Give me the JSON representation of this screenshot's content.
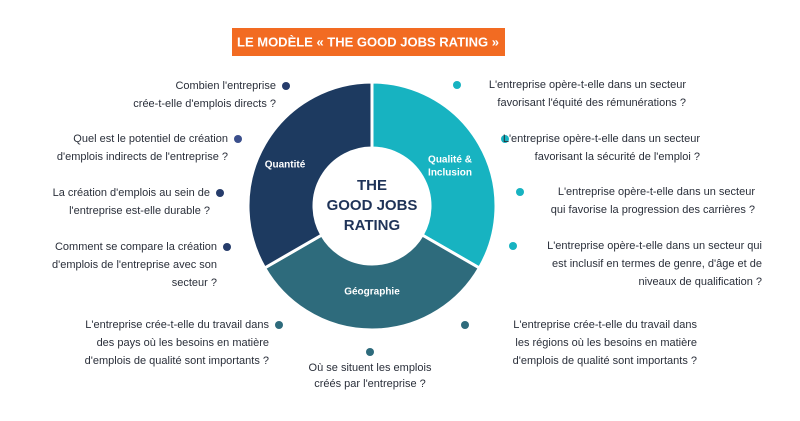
{
  "banner": "LE MODÈLE « THE GOOD JOBS RATING »",
  "center": [
    "THE",
    "GOOD JOBS",
    "RATING"
  ],
  "segments": {
    "quantite": [
      "Quantité"
    ],
    "qualite": [
      "Qualité &",
      "Inclusion"
    ],
    "geographie": [
      "Géographie"
    ]
  },
  "left_questions": [
    [
      "Combien l'entreprise",
      "crée-t-elle d'emplois directs ?"
    ],
    [
      "Quel est le potentiel de création",
      "d'emplois indirects de l'entreprise ?"
    ],
    [
      "La création d'emplois au sein de",
      "l'entreprise est-elle durable ?"
    ],
    [
      "Comment se compare la création",
      "d'emplois de l'entreprise avec son",
      "secteur ?"
    ],
    [
      "L'entreprise crée-t-elle du travail dans",
      "des pays où les besoins en matière",
      "d'emplois de qualité sont importants ?"
    ]
  ],
  "bottom_question": [
    "Où se situent les emplois",
    "créés par l'entreprise ?"
  ],
  "right_questions": [
    [
      "L'entreprise opère-t-elle dans un secteur",
      "favorisant l'équité des rémunérations ?"
    ],
    [
      "L'entreprise opère-t-elle dans un secteur",
      "favorisant la sécurité de l'emploi ?"
    ],
    [
      "L'entreprise opère-t-elle dans un secteur",
      "qui favorise la progression des carrières ?"
    ],
    [
      "L'entreprise opère-t-elle dans un secteur qui",
      "est inclusif en termes de genre, d'âge et de",
      "niveaux de qualification ?"
    ],
    [
      "L'entreprise crée-t-elle du travail dans",
      "les régions où les besoins en matière",
      "d'emplois de qualité sont importants ?"
    ]
  ]
}
